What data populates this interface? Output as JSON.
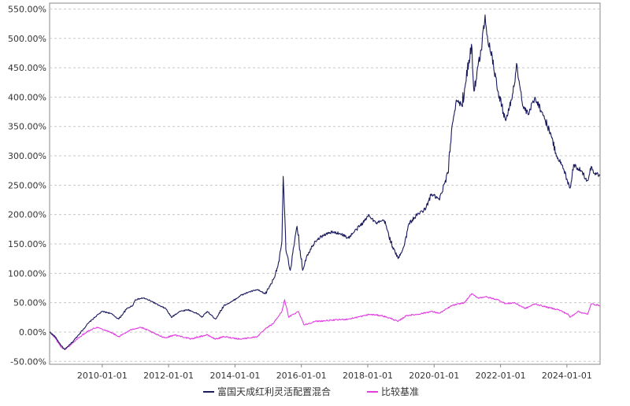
{
  "chart_data": {
    "type": "line",
    "title": "",
    "xlabel": "",
    "ylabel": "",
    "x_range": [
      "2008-06-01",
      "2024-12-31"
    ],
    "ylim": [
      -55,
      560
    ],
    "y_ticks": [
      -50,
      0,
      50,
      100,
      150,
      200,
      250,
      300,
      350,
      400,
      450,
      500,
      550
    ],
    "y_tick_labels": [
      "-50.00%",
      "0.00%",
      "50.00%",
      "100.00%",
      "150.00%",
      "200.00%",
      "250.00%",
      "300.00%",
      "350.00%",
      "400.00%",
      "450.00%",
      "500.00%",
      "550.00%"
    ],
    "x_ticks": [
      "2010-01-01",
      "2012-01-01",
      "2014-01-01",
      "2016-01-01",
      "2018-01-01",
      "2020-01-01",
      "2022-01-01",
      "2024-01-01"
    ],
    "x_tick_labels": [
      "2010-01-01",
      "2012-01-01",
      "2014-01-01",
      "2016-01-01",
      "2018-01-01",
      "2020-01-01",
      "2022-01-01",
      "2024-01-01"
    ],
    "grid": true,
    "legend_position": "bottom-center",
    "series": [
      {
        "name": "富国天成红利灵活配置混合",
        "color": "#1a1a5e",
        "points": [
          [
            "2008-06-01",
            0
          ],
          [
            "2008-08-01",
            -8
          ],
          [
            "2008-10-01",
            -22
          ],
          [
            "2008-11-15",
            -30
          ],
          [
            "2009-02-01",
            -18
          ],
          [
            "2009-05-01",
            -2
          ],
          [
            "2009-08-01",
            15
          ],
          [
            "2009-11-01",
            28
          ],
          [
            "2010-01-01",
            35
          ],
          [
            "2010-04-01",
            32
          ],
          [
            "2010-07-01",
            22
          ],
          [
            "2010-10-01",
            40
          ],
          [
            "2010-12-01",
            45
          ],
          [
            "2011-01-01",
            55
          ],
          [
            "2011-04-01",
            58
          ],
          [
            "2011-07-01",
            52
          ],
          [
            "2011-10-01",
            44
          ],
          [
            "2011-12-01",
            40
          ],
          [
            "2012-02-01",
            25
          ],
          [
            "2012-05-01",
            35
          ],
          [
            "2012-08-01",
            38
          ],
          [
            "2012-12-01",
            30
          ],
          [
            "2013-01-01",
            25
          ],
          [
            "2013-03-01",
            35
          ],
          [
            "2013-06-01",
            22
          ],
          [
            "2013-09-01",
            45
          ],
          [
            "2013-12-01",
            52
          ],
          [
            "2014-03-01",
            62
          ],
          [
            "2014-06-01",
            68
          ],
          [
            "2014-09-01",
            72
          ],
          [
            "2014-12-01",
            65
          ],
          [
            "2015-03-01",
            90
          ],
          [
            "2015-05-01",
            120
          ],
          [
            "2015-06-01",
            155
          ],
          [
            "2015-06-15",
            265
          ],
          [
            "2015-07-15",
            140
          ],
          [
            "2015-09-01",
            105
          ],
          [
            "2015-10-15",
            150
          ],
          [
            "2015-11-15",
            180
          ],
          [
            "2016-01-15",
            105
          ],
          [
            "2016-03-01",
            130
          ],
          [
            "2016-06-01",
            155
          ],
          [
            "2016-09-01",
            165
          ],
          [
            "2016-12-01",
            170
          ],
          [
            "2017-03-01",
            168
          ],
          [
            "2017-06-01",
            160
          ],
          [
            "2017-09-01",
            175
          ],
          [
            "2017-12-01",
            190
          ],
          [
            "2018-01-15",
            200
          ],
          [
            "2018-04-01",
            185
          ],
          [
            "2018-07-01",
            190
          ],
          [
            "2018-10-01",
            145
          ],
          [
            "2018-12-01",
            125
          ],
          [
            "2019-02-01",
            145
          ],
          [
            "2019-04-01",
            185
          ],
          [
            "2019-07-01",
            200
          ],
          [
            "2019-10-01",
            210
          ],
          [
            "2019-12-01",
            235
          ],
          [
            "2020-03-01",
            225
          ],
          [
            "2020-06-01",
            270
          ],
          [
            "2020-07-15",
            350
          ],
          [
            "2020-09-01",
            395
          ],
          [
            "2020-11-01",
            385
          ],
          [
            "2021-02-15",
            490
          ],
          [
            "2021-03-15",
            410
          ],
          [
            "2021-06-01",
            480
          ],
          [
            "2021-07-15",
            540
          ],
          [
            "2021-08-15",
            495
          ],
          [
            "2021-10-01",
            470
          ],
          [
            "2021-12-01",
            410
          ],
          [
            "2022-03-01",
            360
          ],
          [
            "2022-05-01",
            395
          ],
          [
            "2022-07-01",
            455
          ],
          [
            "2022-09-01",
            385
          ],
          [
            "2022-11-01",
            370
          ],
          [
            "2023-01-15",
            400
          ],
          [
            "2023-04-01",
            375
          ],
          [
            "2023-07-01",
            340
          ],
          [
            "2023-09-01",
            305
          ],
          [
            "2023-12-01",
            275
          ],
          [
            "2024-02-05",
            245
          ],
          [
            "2024-03-15",
            285
          ],
          [
            "2024-06-01",
            275
          ],
          [
            "2024-08-15",
            258
          ],
          [
            "2024-09-25",
            282
          ],
          [
            "2024-11-01",
            270
          ],
          [
            "2024-12-31",
            267
          ]
        ]
      },
      {
        "name": "比较基准",
        "color": "#e040e0",
        "points": [
          [
            "2008-06-01",
            0
          ],
          [
            "2008-08-01",
            -10
          ],
          [
            "2008-10-01",
            -25
          ],
          [
            "2008-11-15",
            -30
          ],
          [
            "2009-02-01",
            -20
          ],
          [
            "2009-05-01",
            -8
          ],
          [
            "2009-08-01",
            2
          ],
          [
            "2009-11-01",
            8
          ],
          [
            "2010-01-01",
            5
          ],
          [
            "2010-04-01",
            0
          ],
          [
            "2010-07-01",
            -8
          ],
          [
            "2010-10-01",
            0
          ],
          [
            "2010-12-01",
            5
          ],
          [
            "2011-03-01",
            8
          ],
          [
            "2011-06-01",
            2
          ],
          [
            "2011-09-01",
            -5
          ],
          [
            "2011-12-01",
            -10
          ],
          [
            "2012-03-01",
            -5
          ],
          [
            "2012-06-01",
            -8
          ],
          [
            "2012-09-01",
            -12
          ],
          [
            "2012-12-01",
            -8
          ],
          [
            "2013-03-01",
            -5
          ],
          [
            "2013-06-01",
            -12
          ],
          [
            "2013-09-01",
            -8
          ],
          [
            "2013-12-01",
            -10
          ],
          [
            "2014-03-01",
            -12
          ],
          [
            "2014-06-01",
            -10
          ],
          [
            "2014-09-01",
            -8
          ],
          [
            "2014-12-01",
            5
          ],
          [
            "2015-03-01",
            15
          ],
          [
            "2015-06-01",
            35
          ],
          [
            "2015-07-01",
            55
          ],
          [
            "2015-08-15",
            25
          ],
          [
            "2015-10-01",
            30
          ],
          [
            "2015-12-01",
            35
          ],
          [
            "2016-02-01",
            12
          ],
          [
            "2016-06-01",
            18
          ],
          [
            "2016-12-01",
            20
          ],
          [
            "2017-06-01",
            22
          ],
          [
            "2017-12-01",
            28
          ],
          [
            "2018-01-15",
            30
          ],
          [
            "2018-06-01",
            28
          ],
          [
            "2018-10-01",
            22
          ],
          [
            "2018-12-01",
            18
          ],
          [
            "2019-03-01",
            28
          ],
          [
            "2019-07-01",
            30
          ],
          [
            "2019-12-01",
            35
          ],
          [
            "2020-03-01",
            32
          ],
          [
            "2020-07-15",
            45
          ],
          [
            "2020-12-01",
            50
          ],
          [
            "2021-02-15",
            65
          ],
          [
            "2021-05-01",
            58
          ],
          [
            "2021-07-15",
            60
          ],
          [
            "2021-12-01",
            55
          ],
          [
            "2022-03-01",
            48
          ],
          [
            "2022-06-01",
            50
          ],
          [
            "2022-10-01",
            40
          ],
          [
            "2023-01-15",
            48
          ],
          [
            "2023-06-01",
            42
          ],
          [
            "2023-10-01",
            38
          ],
          [
            "2024-01-15",
            30
          ],
          [
            "2024-02-05",
            25
          ],
          [
            "2024-05-01",
            35
          ],
          [
            "2024-08-15",
            30
          ],
          [
            "2024-09-25",
            48
          ],
          [
            "2024-12-31",
            45
          ]
        ]
      }
    ]
  }
}
